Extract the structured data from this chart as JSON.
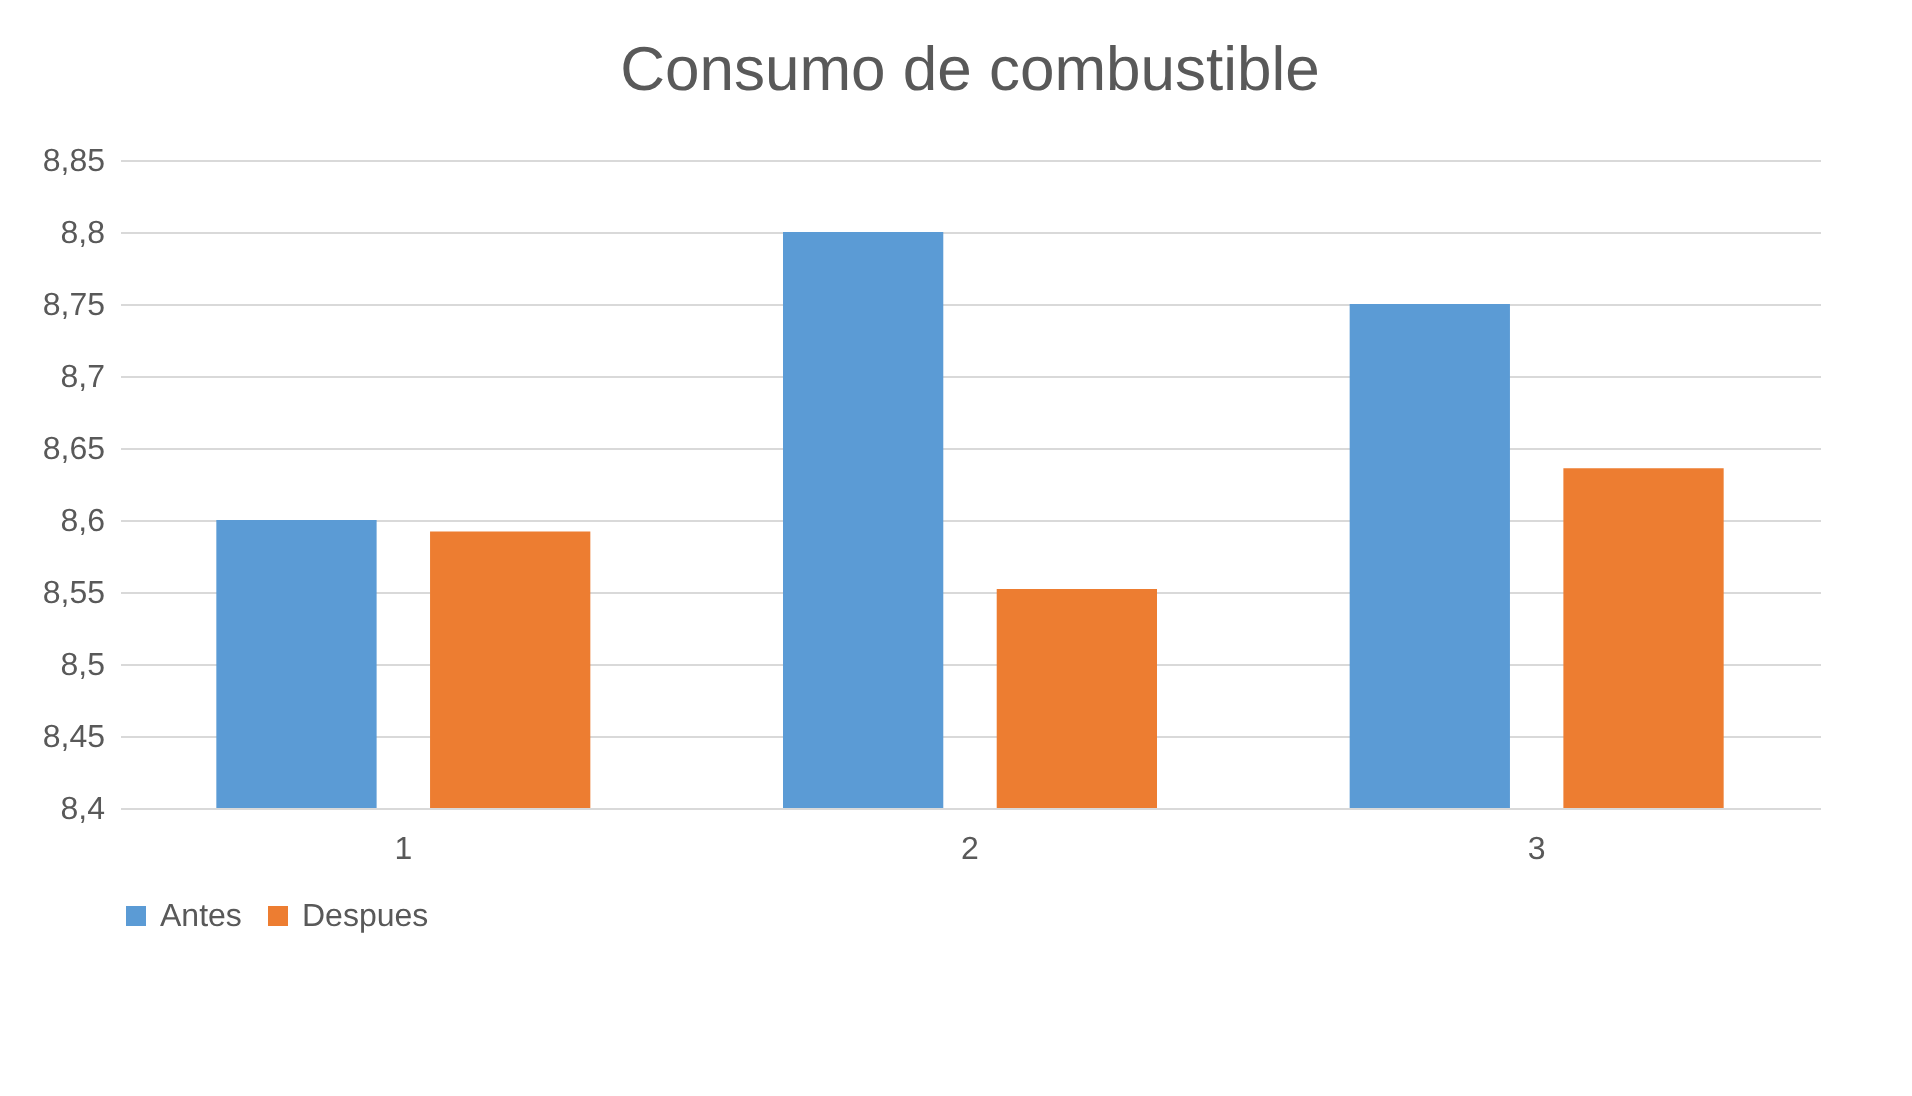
{
  "chart_data": {
    "type": "bar",
    "title": "Consumo de combustible",
    "categories": [
      "1",
      "2",
      "3"
    ],
    "series": [
      {
        "name": "Antes",
        "color": "#5b9bd5",
        "values": [
          8.6,
          8.8,
          8.75
        ]
      },
      {
        "name": "Despues",
        "color": "#ed7d31",
        "values": [
          8.592,
          8.552,
          8.636
        ]
      }
    ],
    "ylim": [
      8.4,
      8.85
    ],
    "yticks": [
      {
        "value": 8.4,
        "label": "8,4"
      },
      {
        "value": 8.45,
        "label": "8,45"
      },
      {
        "value": 8.5,
        "label": "8,5"
      },
      {
        "value": 8.55,
        "label": "8,55"
      },
      {
        "value": 8.6,
        "label": "8,6"
      },
      {
        "value": 8.65,
        "label": "8,65"
      },
      {
        "value": 8.7,
        "label": "8,7"
      },
      {
        "value": 8.75,
        "label": "8,75"
      },
      {
        "value": 8.8,
        "label": "8,8"
      },
      {
        "value": 8.85,
        "label": "8,85"
      }
    ],
    "grid": "y",
    "legend": "bottom"
  }
}
